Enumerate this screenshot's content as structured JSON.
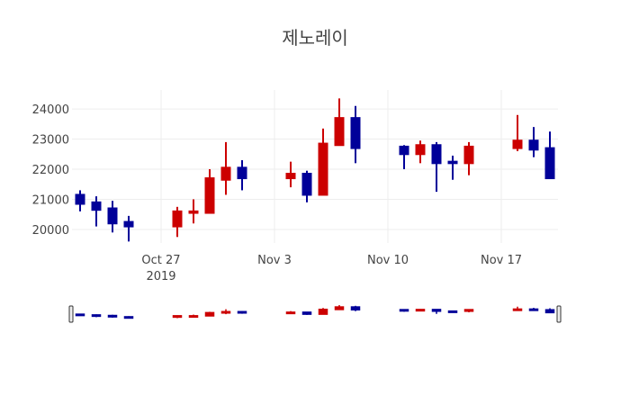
{
  "chart_data": {
    "type": "candlestick",
    "title": "제노레이",
    "xlabel": "",
    "ylabel": "",
    "ylim": [
      19550,
      24630
    ],
    "xlim": [
      "2019-10-21T12:00",
      "2019-11-20T12:00"
    ],
    "grid": true,
    "y_ticks": [
      20000,
      21000,
      22000,
      23000,
      24000
    ],
    "x_ticks": [
      {
        "date": "2019-10-27",
        "label": "Oct 27",
        "sublabel": "2019"
      },
      {
        "date": "2019-11-03",
        "label": "Nov 3",
        "sublabel": ""
      },
      {
        "date": "2019-11-10",
        "label": "Nov 10",
        "sublabel": ""
      },
      {
        "date": "2019-11-17",
        "label": "Nov 17",
        "sublabel": ""
      }
    ],
    "increasing_color": "#cc0000",
    "decreasing_color": "#000099",
    "rangeslider": true,
    "candles": [
      {
        "date": "2019-10-22",
        "open": 21150,
        "high": 21300,
        "low": 20600,
        "close": 20850
      },
      {
        "date": "2019-10-23",
        "open": 20900,
        "high": 21100,
        "low": 20100,
        "close": 20650
      },
      {
        "date": "2019-10-24",
        "open": 20700,
        "high": 20950,
        "low": 19900,
        "close": 20200
      },
      {
        "date": "2019-10-25",
        "open": 20250,
        "high": 20450,
        "low": 19600,
        "close": 20100
      },
      {
        "date": "2019-10-28",
        "open": 20100,
        "high": 20750,
        "low": 19750,
        "close": 20600
      },
      {
        "date": "2019-10-29",
        "open": 20550,
        "high": 21000,
        "low": 20200,
        "close": 20600
      },
      {
        "date": "2019-10-30",
        "open": 20550,
        "high": 22000,
        "low": 20550,
        "close": 21700
      },
      {
        "date": "2019-10-31",
        "open": 21650,
        "high": 22900,
        "low": 21150,
        "close": 22050
      },
      {
        "date": "2019-11-01",
        "open": 22050,
        "high": 22300,
        "low": 21300,
        "close": 21700
      },
      {
        "date": "2019-11-04",
        "open": 21700,
        "high": 22250,
        "low": 21400,
        "close": 21850
      },
      {
        "date": "2019-11-05",
        "open": 21850,
        "high": 21950,
        "low": 20900,
        "close": 21150
      },
      {
        "date": "2019-11-06",
        "open": 21150,
        "high": 23350,
        "low": 21150,
        "close": 22850
      },
      {
        "date": "2019-11-07",
        "open": 22800,
        "high": 24350,
        "low": 22800,
        "close": 23700
      },
      {
        "date": "2019-11-08",
        "open": 23700,
        "high": 24100,
        "low": 22200,
        "close": 22700
      },
      {
        "date": "2019-11-11",
        "open": 22750,
        "high": 22800,
        "low": 22000,
        "close": 22500
      },
      {
        "date": "2019-11-12",
        "open": 22500,
        "high": 22950,
        "low": 22200,
        "close": 22800
      },
      {
        "date": "2019-11-13",
        "open": 22800,
        "high": 22900,
        "low": 21250,
        "close": 22200
      },
      {
        "date": "2019-11-14",
        "open": 22250,
        "high": 22450,
        "low": 21650,
        "close": 22200
      },
      {
        "date": "2019-11-15",
        "open": 22200,
        "high": 22900,
        "low": 21800,
        "close": 22750
      },
      {
        "date": "2019-11-18",
        "open": 22700,
        "high": 23800,
        "low": 22600,
        "close": 22950
      },
      {
        "date": "2019-11-19",
        "open": 22950,
        "high": 23400,
        "low": 22400,
        "close": 22650
      },
      {
        "date": "2019-11-20",
        "open": 22700,
        "high": 23250,
        "low": 21700,
        "close": 21700
      }
    ]
  }
}
